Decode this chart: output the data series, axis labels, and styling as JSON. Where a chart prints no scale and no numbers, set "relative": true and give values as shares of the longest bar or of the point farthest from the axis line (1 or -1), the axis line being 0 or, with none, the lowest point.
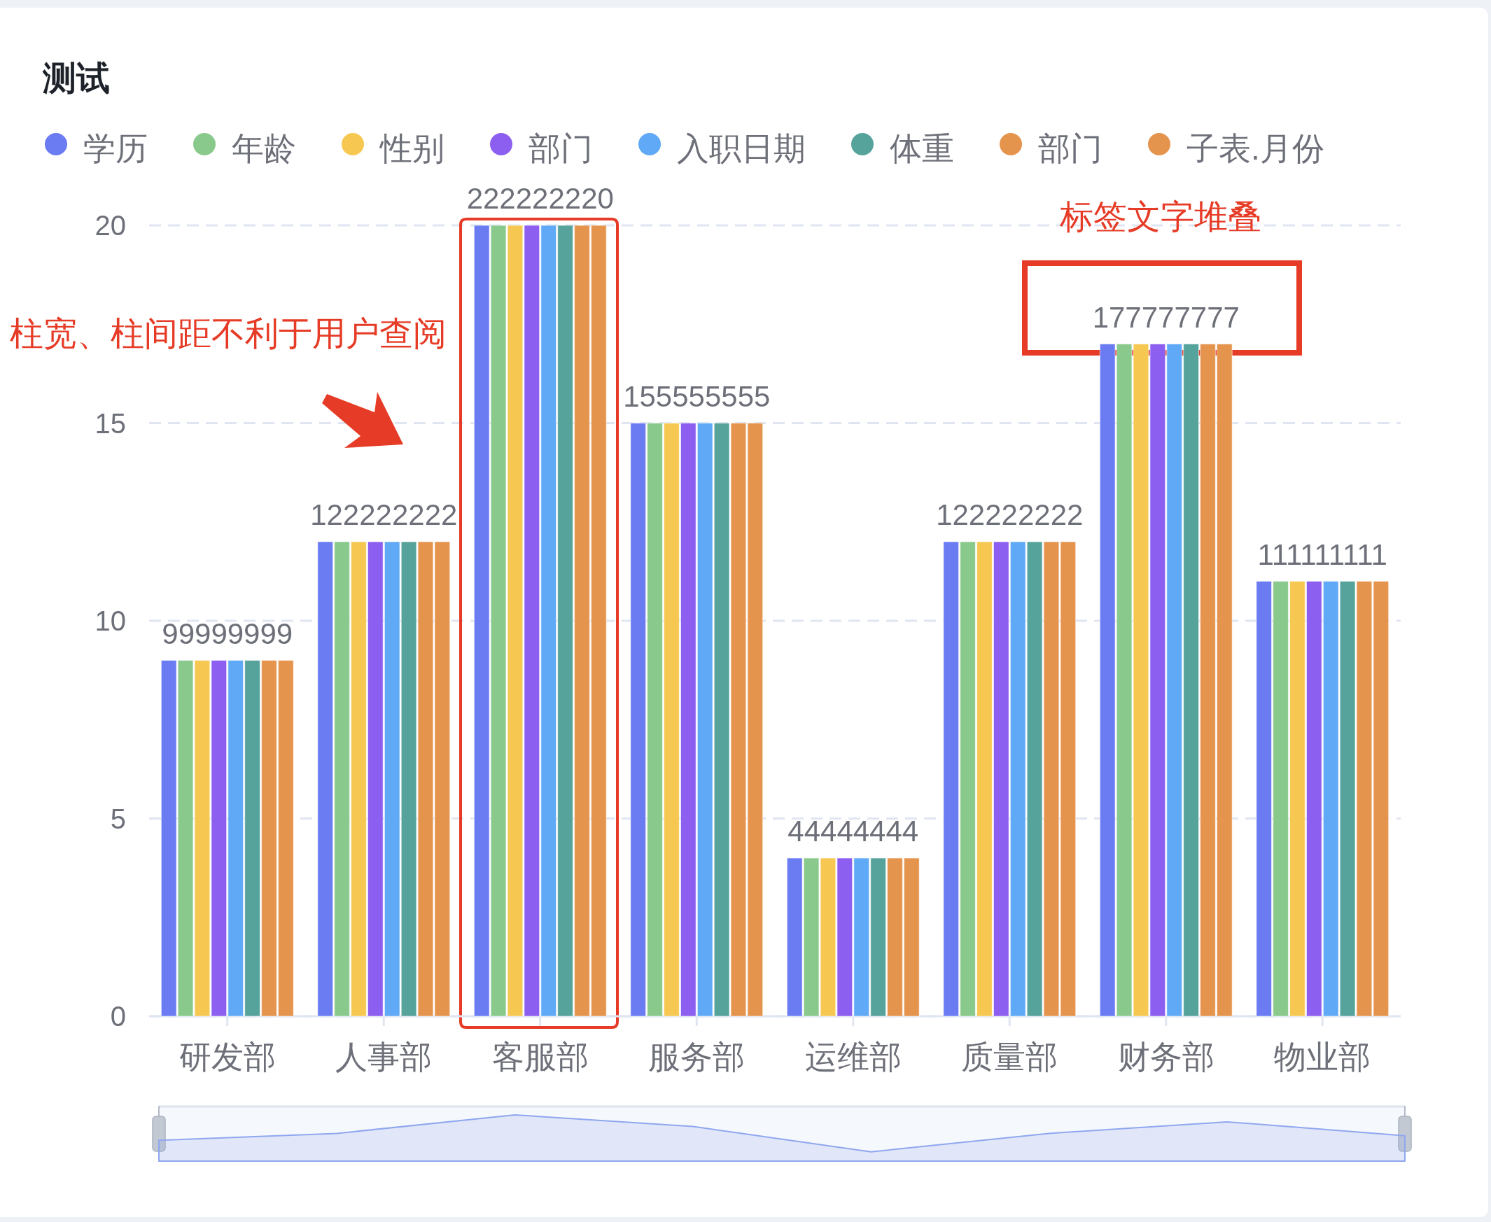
{
  "chart_data": [
    {
      "type": "bar",
      "title": "测试",
      "categories": [
        "研发部",
        "人事部",
        "客服部",
        "服务部",
        "运维部",
        "质量部",
        "财务部",
        "物业部"
      ],
      "series": [
        {
          "name": "学历",
          "color": "#6b7bf2",
          "values": [
            9,
            12,
            20,
            15,
            4,
            12,
            17,
            11
          ]
        },
        {
          "name": "年龄",
          "color": "#8ac98c",
          "values": [
            9,
            12,
            20,
            15,
            4,
            12,
            17,
            11
          ]
        },
        {
          "name": "性别",
          "color": "#f6c851",
          "values": [
            9,
            12,
            20,
            15,
            4,
            12,
            17,
            11
          ]
        },
        {
          "name": "部门",
          "color": "#8c5ff0",
          "values": [
            9,
            12,
            20,
            15,
            4,
            12,
            17,
            11
          ]
        },
        {
          "name": "入职日期",
          "color": "#5fa9f6",
          "values": [
            9,
            12,
            20,
            15,
            4,
            12,
            17,
            11
          ]
        },
        {
          "name": "体重",
          "color": "#56a39b",
          "values": [
            9,
            12,
            20,
            15,
            4,
            12,
            17,
            11
          ]
        },
        {
          "name": "部门",
          "color": "#e5944e",
          "values": [
            9,
            12,
            20,
            15,
            4,
            12,
            17,
            11
          ]
        },
        {
          "name": "子表.月份",
          "color": "#e5944e",
          "values": [
            9,
            12,
            20,
            15,
            4,
            12,
            17,
            11
          ]
        }
      ],
      "ylim": [
        0,
        20
      ],
      "yticks": [
        0,
        5,
        10,
        15,
        20
      ],
      "grid": "y",
      "legend": "top left",
      "annotations": [
        "柱宽、柱间距不利于用户查阅",
        "标签文字堆叠",
        {
          "text": "99999999",
          "x": "研发部",
          "y": 9
        },
        {
          "text": "122222222",
          "x": "人事部",
          "y": 12
        },
        {
          "text": "222222220",
          "x": "客服部",
          "y": 20
        },
        {
          "text": "155555555",
          "x": "服务部",
          "y": 15
        },
        {
          "text": "44444444",
          "x": "运维部",
          "y": 4
        },
        {
          "text": "122222222",
          "x": "质量部",
          "y": 12
        },
        {
          "text": "177777777",
          "x": "财务部",
          "y": 17
        },
        {
          "text": "111111111",
          "x": "物业部",
          "y": 11
        }
      ]
    },
    {
      "type": "area",
      "categories": [
        null,
        null,
        null,
        null,
        null,
        null,
        null,
        null
      ],
      "values": [
        0.45,
        0.6,
        1,
        0.75,
        0.2,
        0.6,
        0.85,
        0.55
      ],
      "color": "#8fa7ef",
      "relative": true
    }
  ]
}
